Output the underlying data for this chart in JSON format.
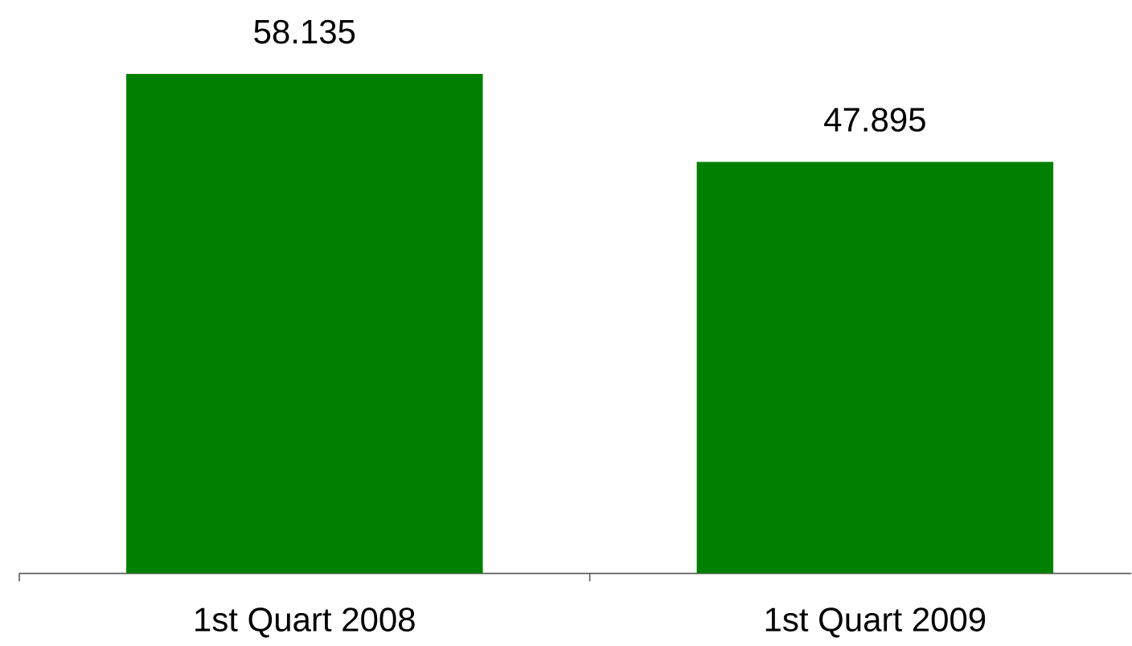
{
  "chart_data": {
    "type": "bar",
    "categories": [
      "1st Quart 2008",
      "1st Quart 2009"
    ],
    "values": [
      58.135,
      47.895
    ],
    "color": "#008000",
    "data_labels": true
  }
}
